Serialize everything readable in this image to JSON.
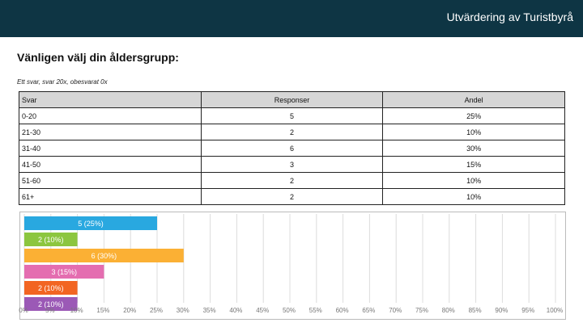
{
  "header": {
    "title": "Utvärdering av Turistbyrå"
  },
  "question": "Vänligen välj din åldersgrupp:",
  "subtitle": "Ett svar, svar 20x, obesvarat 0x",
  "table": {
    "headers": [
      "Svar",
      "Responser",
      "Andel"
    ],
    "rows": [
      [
        "0-20",
        "5",
        "25%"
      ],
      [
        "21-30",
        "2",
        "10%"
      ],
      [
        "31-40",
        "6",
        "30%"
      ],
      [
        "41-50",
        "3",
        "15%"
      ],
      [
        "51-60",
        "2",
        "10%"
      ],
      [
        "61+",
        "2",
        "10%"
      ]
    ]
  },
  "chart_data": {
    "type": "bar",
    "orientation": "horizontal",
    "categories": [
      "0-20",
      "21-30",
      "31-40",
      "41-50",
      "51-60",
      "61+"
    ],
    "values": [
      25,
      10,
      30,
      15,
      10,
      10
    ],
    "labels": [
      "5 (25%)",
      "2 (10%)",
      "6 (30%)",
      "3 (15%)",
      "2 (10%)",
      "2 (10%)"
    ],
    "colors": [
      "#29a8e0",
      "#8cc63f",
      "#fbb034",
      "#e46db0",
      "#f26522",
      "#9b59b6"
    ],
    "xlim": [
      0,
      100
    ],
    "xticks": [
      "0%",
      "5%",
      "10%",
      "15%",
      "20%",
      "25%",
      "30%",
      "35%",
      "40%",
      "45%",
      "50%",
      "55%",
      "60%",
      "65%",
      "70%",
      "75%",
      "80%",
      "85%",
      "90%",
      "95%",
      "100%"
    ],
    "grid": true
  }
}
